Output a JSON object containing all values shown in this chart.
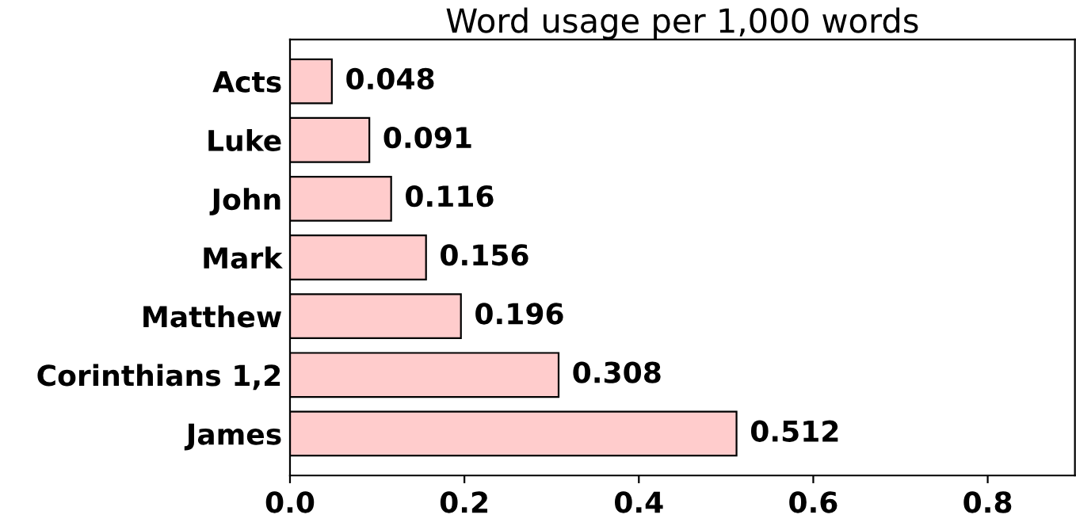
{
  "chart_data": {
    "type": "bar",
    "orientation": "horizontal",
    "title": "Word usage per 1,000 words",
    "categories": [
      "Acts",
      "Luke",
      "John",
      "Mark",
      "Matthew",
      "Corinthians 1,2",
      "James"
    ],
    "values": [
      0.048,
      0.091,
      0.116,
      0.156,
      0.196,
      0.308,
      0.512
    ],
    "color": "#ffcccc",
    "data_labels": true,
    "xlim": [
      0,
      0.9
    ],
    "xticks": [
      {
        "value": 0,
        "label": "0.0"
      },
      0.2,
      0.4,
      0.6,
      0.8
    ],
    "grid": false,
    "legend": false
  }
}
